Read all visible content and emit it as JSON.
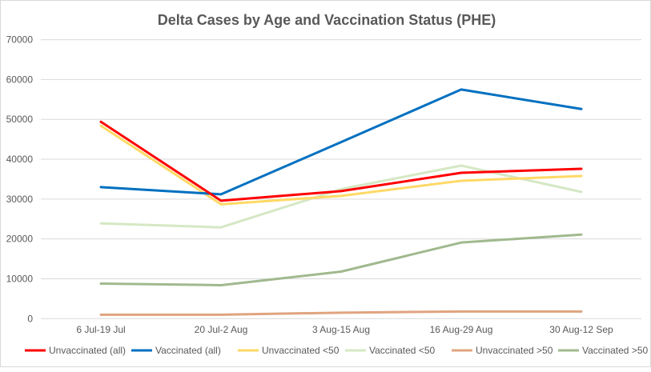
{
  "chart_data": {
    "type": "line",
    "title": "Delta Cases by Age and Vaccination Status (PHE)",
    "xlabel": "",
    "ylabel": "",
    "categories": [
      "6 Jul-19 Jul",
      "20 Jul-2 Aug",
      "3 Aug-15 Aug",
      "16 Aug-29 Aug",
      "30 Aug-12 Sep"
    ],
    "ylim": [
      0,
      70000
    ],
    "yticks": [
      0,
      10000,
      20000,
      30000,
      40000,
      50000,
      60000,
      70000
    ],
    "grid": true,
    "legend": "bottom",
    "series": [
      {
        "name": "Unvaccinated (all)",
        "color": "#ff0000",
        "values": [
          49400,
          29600,
          32000,
          36600,
          37600
        ]
      },
      {
        "name": "Vaccinated (all)",
        "color": "#0070c0",
        "values": [
          33000,
          31200,
          44300,
          57500,
          52600
        ]
      },
      {
        "name": "Unvaccinated <50",
        "color": "#ffd966",
        "values": [
          48400,
          28700,
          30800,
          34600,
          35800
        ]
      },
      {
        "name": "Vaccinated <50",
        "color": "#d5e8c4",
        "values": [
          23900,
          22900,
          32500,
          38400,
          31800
        ]
      },
      {
        "name": "Unvaccinated >50",
        "color": "#e0a47f",
        "values": [
          1000,
          1000,
          1500,
          1800,
          1800
        ]
      },
      {
        "name": "Vaccinated >50",
        "color": "#a0b98e",
        "values": [
          8800,
          8400,
          11800,
          19100,
          21100
        ]
      }
    ]
  }
}
